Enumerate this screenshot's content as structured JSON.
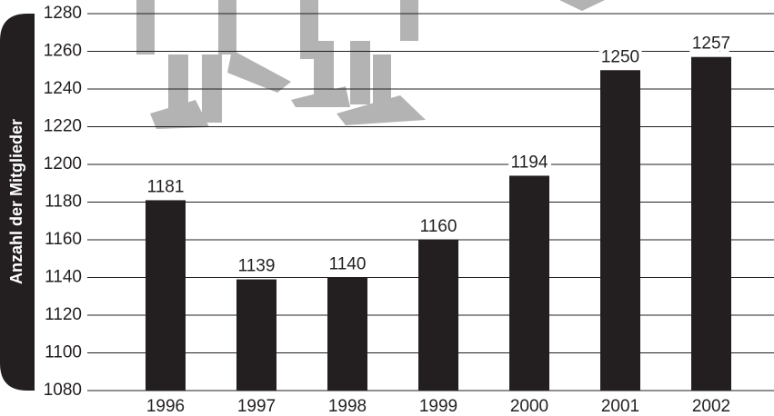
{
  "chart_data": {
    "type": "bar",
    "y_label": "Anzahl der Mitglieder",
    "categories": [
      "1996",
      "1997",
      "1998",
      "1999",
      "2000",
      "2001",
      "2002"
    ],
    "values": [
      1181,
      1139,
      1140,
      1160,
      1194,
      1250,
      1257
    ],
    "color": "#231f20",
    "ylim": [
      1080,
      1280
    ],
    "yticks": [
      1080,
      1100,
      1120,
      1140,
      1160,
      1180,
      1200,
      1220,
      1240,
      1260,
      1280
    ],
    "grid": true
  }
}
